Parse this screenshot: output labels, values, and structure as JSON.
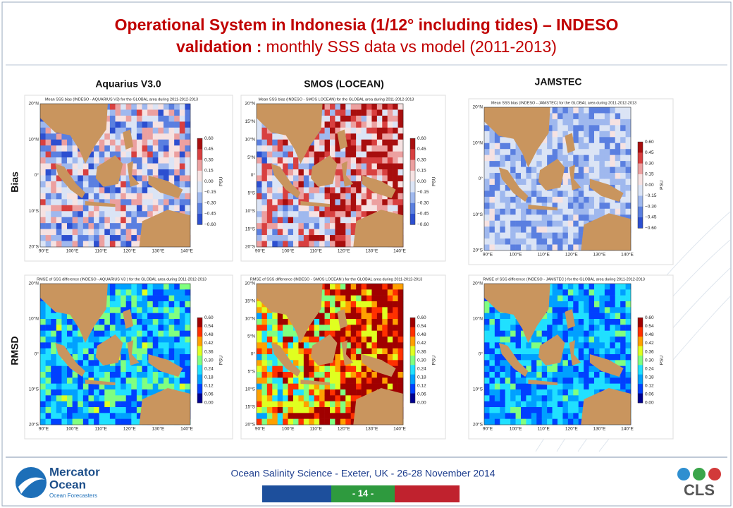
{
  "header": {
    "title_line1": "Operational System in Indonesia (1/12° including tides) – INDESO",
    "title_line2_bold": "validation :",
    "title_line2_rest": "monthly SSS data vs model (2011-2013)"
  },
  "columns": [
    "Aquarius V3.0",
    "SMOS (LOCEAN)",
    "JAMSTEC"
  ],
  "rows": [
    "Bias",
    "RMSD"
  ],
  "panels": [
    {
      "title": "Mean SSS bias (INDESO - AQUARIUS V3) for the GLOBAL area during 2011-2012-2013",
      "lat_labels": [
        "20°N",
        "10°N",
        "0°",
        "10°S",
        "20°S"
      ],
      "lon_labels": [
        "90°E",
        "100°E",
        "110°E",
        "120°E",
        "130°E",
        "140°E"
      ],
      "colorbar": {
        "unit": "PSU",
        "ticks": [
          "0.60",
          "0.45",
          "0.30",
          "0.15",
          "0.00",
          "−0.15",
          "−0.30",
          "−0.45",
          "−0.60"
        ]
      }
    },
    {
      "title": "Mean SSS bias (INDESO - SMOS LOCEAN) for the GLOBAL area during 2011-2012-2013",
      "lat_labels": [
        "20°N",
        "15°N",
        "10°N",
        "5°N",
        "0°",
        "5°S",
        "10°S",
        "15°S",
        "20°S"
      ],
      "lon_labels": [
        "90°E",
        "100°E",
        "110°E",
        "120°E",
        "130°E",
        "140°E"
      ],
      "colorbar": {
        "unit": "PSU",
        "ticks": [
          "0.60",
          "0.45",
          "0.30",
          "0.15",
          "0.00",
          "−0.15",
          "−0.30",
          "−0.45",
          "−0.60"
        ]
      }
    },
    {
      "title": "Mean SSS bias (INDESO - JAMSTEC) for the GLOBAL area during 2011-2012-2013",
      "lat_labels": [
        "20°N",
        "10°N",
        "0°",
        "10°S",
        "20°S"
      ],
      "lon_labels": [
        "90°E",
        "100°E",
        "110°E",
        "120°E",
        "130°E",
        "140°E"
      ],
      "colorbar": {
        "unit": "PSU",
        "ticks": [
          "0.60",
          "0.45",
          "0.30",
          "0.15",
          "0.00",
          "−0.15",
          "−0.30",
          "−0.45",
          "−0.60"
        ]
      }
    },
    {
      "title": "RMSE of SSS difference (INDESO - AQUARIUS V3 ) for the GLOBAL area during 2011-2012-2013",
      "lat_labels": [
        "20°N",
        "10°N",
        "0°",
        "10°S",
        "20°S"
      ],
      "lon_labels": [
        "90°E",
        "100°E",
        "110°E",
        "120°E",
        "130°E",
        "140°E"
      ],
      "colorbar": {
        "unit": "PSU",
        "ticks": [
          "0.60",
          "0.54",
          "0.48",
          "0.42",
          "0.36",
          "0.30",
          "0.24",
          "0.18",
          "0.12",
          "0.06",
          "0.00"
        ]
      }
    },
    {
      "title": "RMSE of SSS difference (INDESO - SMOS LOCEAN ) for the GLOBAL area during 2011-2012-2013",
      "lat_labels": [
        "20°N",
        "15°N",
        "10°N",
        "5°N",
        "0°",
        "5°S",
        "10°S",
        "15°S",
        "20°S"
      ],
      "lon_labels": [
        "90°E",
        "100°E",
        "110°E",
        "120°E",
        "130°E",
        "140°E"
      ],
      "colorbar": {
        "unit": "PSU",
        "ticks": [
          "0.60",
          "0.54",
          "0.48",
          "0.42",
          "0.36",
          "0.30",
          "0.24",
          "0.18",
          "0.12",
          "0.06",
          "0.00"
        ]
      }
    },
    {
      "title": "RMSE of SSS difference (INDESO - JAMSTEC ) for the GLOBAL area during 2011-2012-2013",
      "lat_labels": [
        "20°N",
        "10°N",
        "0°",
        "10°S",
        "20°S"
      ],
      "lon_labels": [
        "90°E",
        "100°E",
        "110°E",
        "120°E",
        "130°E",
        "140°E"
      ],
      "colorbar": {
        "unit": "PSU",
        "ticks": [
          "0.60",
          "0.54",
          "0.48",
          "0.42",
          "0.36",
          "0.30",
          "0.24",
          "0.18",
          "0.12",
          "0.06",
          "0.00"
        ]
      }
    }
  ],
  "footer": {
    "logo_name_1": "Mercator",
    "logo_name_2": "Ocean",
    "logo_tagline": "Ocean Forecasters",
    "event": "Ocean Salinity Science - Exeter, UK - 26-28 November 2014",
    "page": "- 14 -",
    "logo_right": "CLS"
  }
}
